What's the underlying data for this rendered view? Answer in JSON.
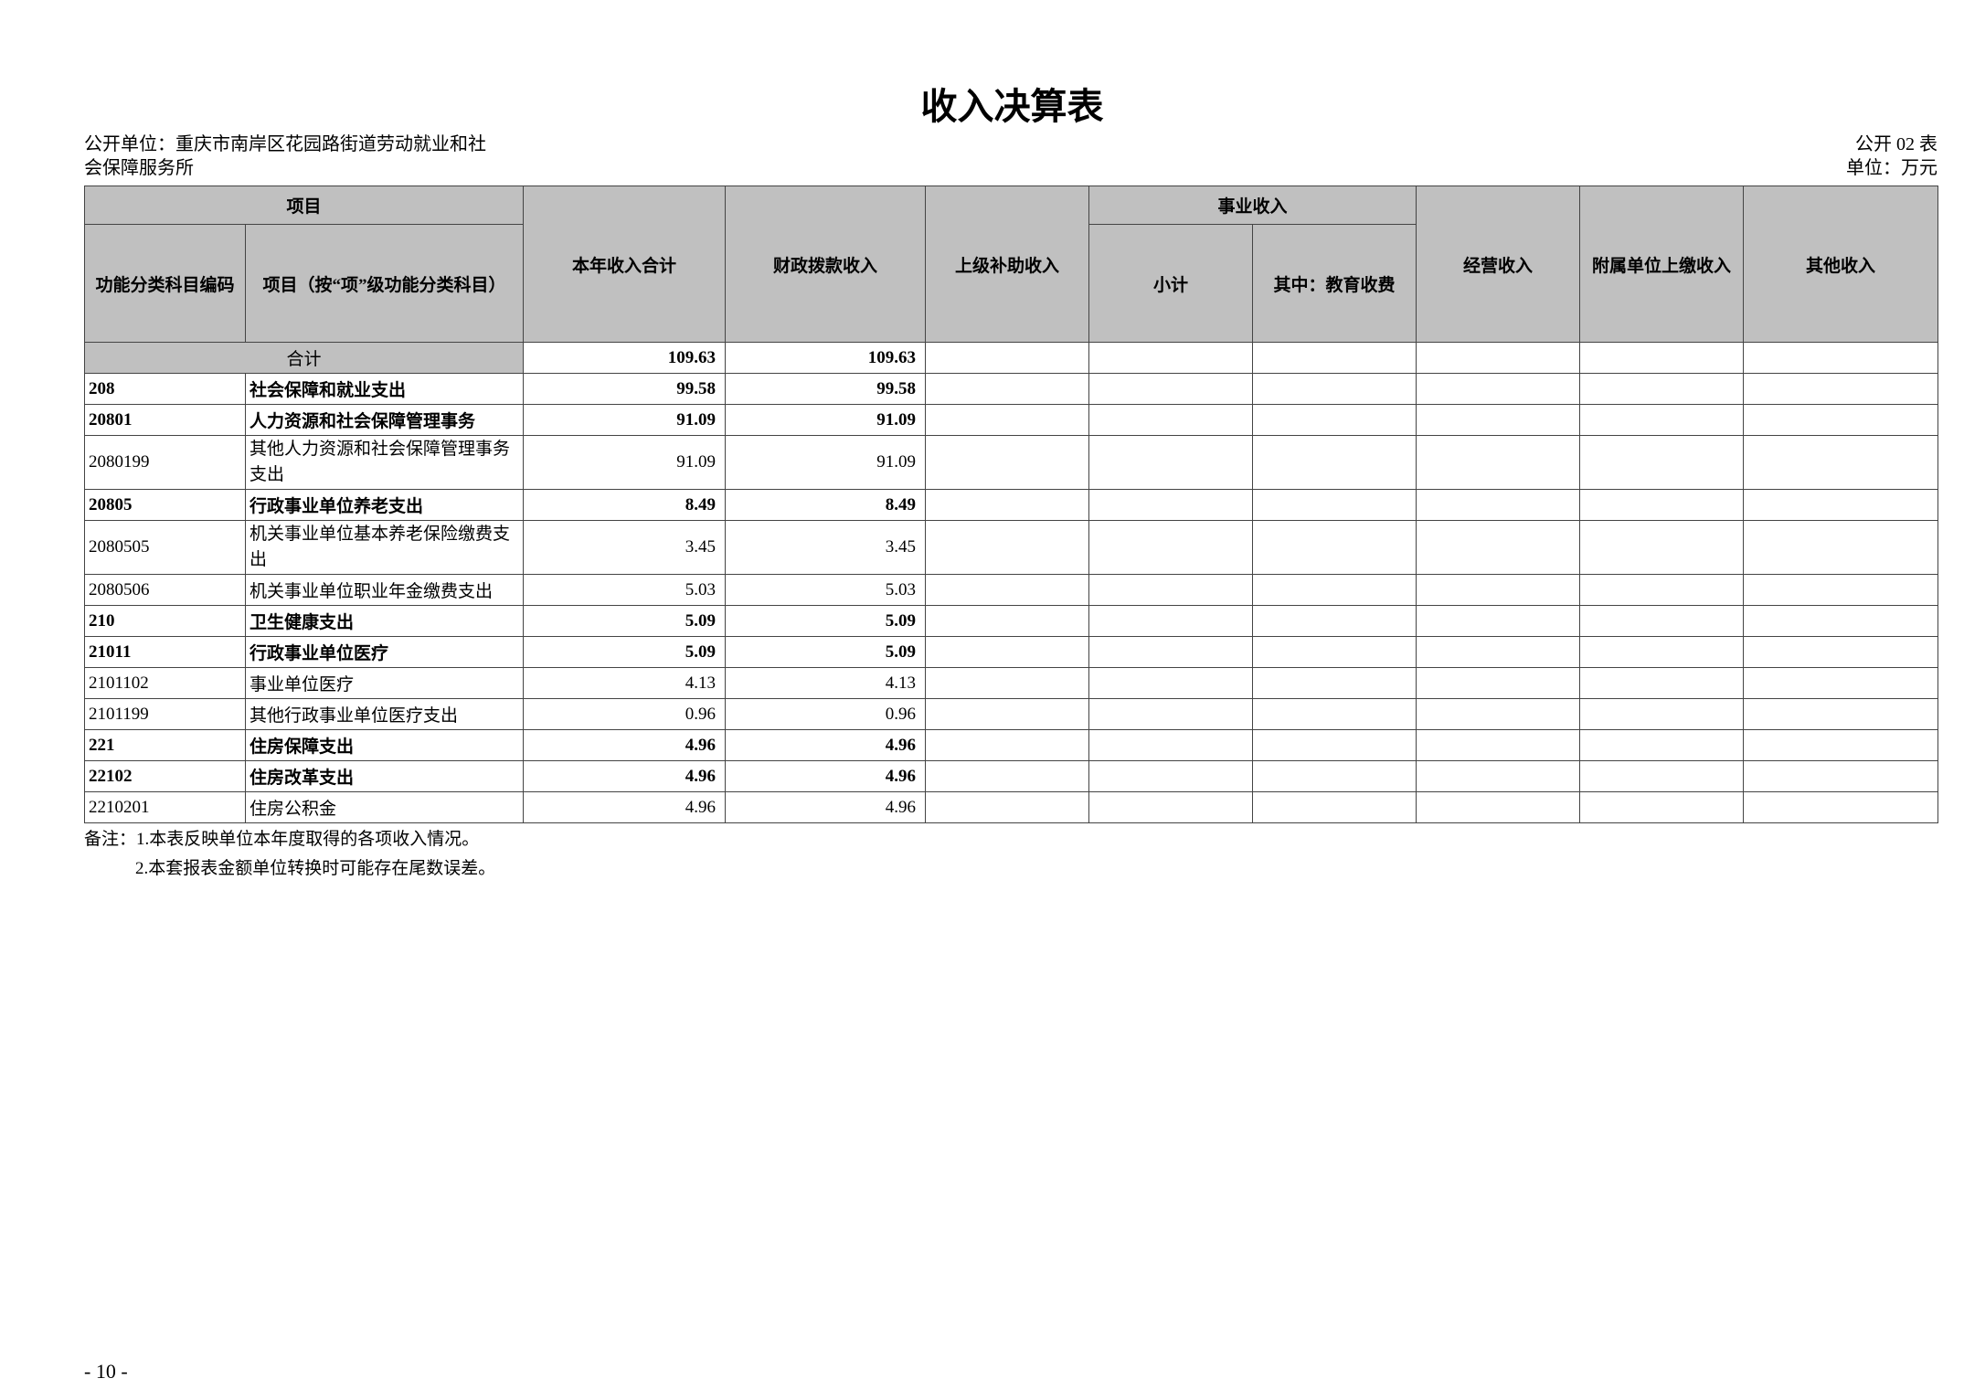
{
  "title": "收入决算表",
  "unit_name_line1": "公开单位：重庆市南岸区花园路街道劳动就业和社",
  "unit_name_line2": "会保障服务所",
  "table_no": "公开 02 表",
  "unit": "单位：万元",
  "headers": {
    "project": "项目",
    "code": "功能分类科目编码",
    "name": "项目（按“项”级功能分类科目）",
    "total": "本年收入合计",
    "fiscal": "财政拨款收入",
    "superior": "上级补助收入",
    "career": "事业收入",
    "subtotal": "小计",
    "education": "其中：教育收费",
    "operating": "经营收入",
    "affiliated": "附属单位上缴收入",
    "other": "其他收入"
  },
  "total_row": {
    "label": "合计",
    "total": "109.63",
    "fiscal": "109.63"
  },
  "rows": [
    {
      "code": "208",
      "name": "社会保障和就业支出",
      "total": "99.58",
      "fiscal": "99.58",
      "bold": true
    },
    {
      "code": "20801",
      "name": "人力资源和社会保障管理事务",
      "total": "91.09",
      "fiscal": "91.09",
      "bold": true
    },
    {
      "code": "2080199",
      "name": "其他人力资源和社会保障管理事务支出",
      "total": "91.09",
      "fiscal": "91.09",
      "bold": false
    },
    {
      "code": "20805",
      "name": "行政事业单位养老支出",
      "total": "8.49",
      "fiscal": "8.49",
      "bold": true
    },
    {
      "code": "2080505",
      "name": "机关事业单位基本养老保险缴费支出",
      "total": "3.45",
      "fiscal": "3.45",
      "bold": false
    },
    {
      "code": "2080506",
      "name": "机关事业单位职业年金缴费支出",
      "total": "5.03",
      "fiscal": "5.03",
      "bold": false
    },
    {
      "code": "210",
      "name": "卫生健康支出",
      "total": "5.09",
      "fiscal": "5.09",
      "bold": true
    },
    {
      "code": "21011",
      "name": "行政事业单位医疗",
      "total": "5.09",
      "fiscal": "5.09",
      "bold": true
    },
    {
      "code": "2101102",
      "name": "事业单位医疗",
      "total": "4.13",
      "fiscal": "4.13",
      "bold": false
    },
    {
      "code": "2101199",
      "name": "其他行政事业单位医疗支出",
      "total": "0.96",
      "fiscal": "0.96",
      "bold": false
    },
    {
      "code": "221",
      "name": "住房保障支出",
      "total": "4.96",
      "fiscal": "4.96",
      "bold": true
    },
    {
      "code": "22102",
      "name": "住房改革支出",
      "total": "4.96",
      "fiscal": "4.96",
      "bold": true
    },
    {
      "code": "2210201",
      "name": "住房公积金",
      "total": "4.96",
      "fiscal": "4.96",
      "bold": false
    }
  ],
  "notes": [
    "备注：1.本表反映单位本年度取得的各项收入情况。",
    "2.本套报表金额单位转换时可能存在尾数误差。"
  ],
  "page_number": "- 10 -"
}
